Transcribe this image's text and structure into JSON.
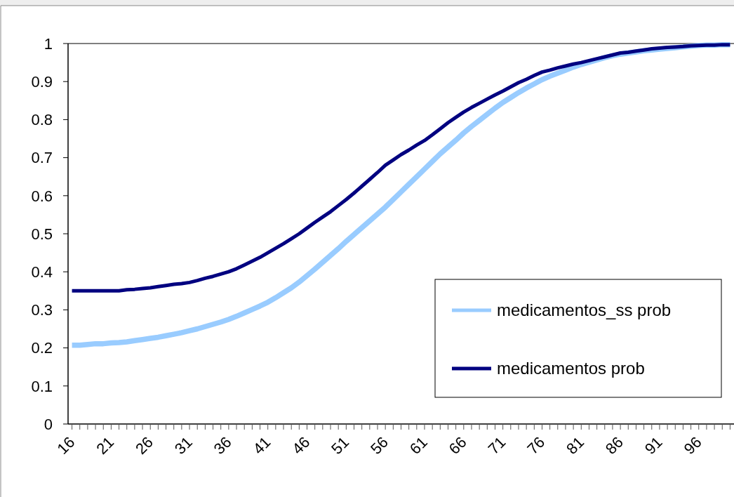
{
  "chart_data": {
    "type": "line",
    "categories": [
      "16",
      null,
      null,
      null,
      null,
      "21",
      null,
      null,
      null,
      null,
      "26",
      null,
      null,
      null,
      null,
      "31",
      null,
      null,
      null,
      null,
      "36",
      null,
      null,
      null,
      null,
      "41",
      null,
      null,
      null,
      null,
      "46",
      null,
      null,
      null,
      null,
      "51",
      null,
      null,
      null,
      null,
      "56",
      null,
      null,
      null,
      null,
      "61",
      null,
      null,
      null,
      null,
      "66",
      null,
      null,
      null,
      null,
      "71",
      null,
      null,
      null,
      null,
      "76",
      null,
      null,
      null,
      null,
      "81",
      null,
      null,
      null,
      null,
      "86",
      null,
      null,
      null,
      null,
      "91",
      null,
      null,
      null,
      null,
      "96",
      null,
      null,
      null,
      null
    ],
    "series": [
      {
        "name": "medicamentos_ss prob",
        "color": "#99ccff",
        "values": [
          0.207,
          0.207,
          0.209,
          0.211,
          0.211,
          0.213,
          0.214,
          0.216,
          0.219,
          0.222,
          0.225,
          0.228,
          0.232,
          0.236,
          0.24,
          0.245,
          0.25,
          0.256,
          0.262,
          0.268,
          0.275,
          0.283,
          0.292,
          0.301,
          0.31,
          0.32,
          0.332,
          0.345,
          0.358,
          0.373,
          0.39,
          0.407,
          0.425,
          0.443,
          0.461,
          0.48,
          0.498,
          0.516,
          0.534,
          0.552,
          0.57,
          0.59,
          0.61,
          0.63,
          0.65,
          0.67,
          0.69,
          0.71,
          0.728,
          0.746,
          0.765,
          0.782,
          0.798,
          0.814,
          0.83,
          0.845,
          0.858,
          0.871,
          0.883,
          0.894,
          0.905,
          0.914,
          0.922,
          0.93,
          0.938,
          0.945,
          0.951,
          0.957,
          0.963,
          0.968,
          0.972,
          0.975,
          0.978,
          0.981,
          0.983,
          0.985,
          0.987,
          0.989,
          0.991,
          0.993,
          0.995,
          0.996,
          0.996,
          0.997,
          0.997
        ]
      },
      {
        "name": "medicamentos prob",
        "color": "#000080",
        "values": [
          0.35,
          0.35,
          0.35,
          0.35,
          0.35,
          0.35,
          0.35,
          0.353,
          0.354,
          0.356,
          0.358,
          0.361,
          0.364,
          0.367,
          0.369,
          0.372,
          0.377,
          0.383,
          0.388,
          0.394,
          0.4,
          0.408,
          0.418,
          0.428,
          0.438,
          0.45,
          0.462,
          0.474,
          0.487,
          0.5,
          0.515,
          0.53,
          0.544,
          0.558,
          0.574,
          0.59,
          0.607,
          0.625,
          0.643,
          0.661,
          0.68,
          0.694,
          0.708,
          0.72,
          0.733,
          0.745,
          0.76,
          0.776,
          0.792,
          0.806,
          0.82,
          0.832,
          0.843,
          0.854,
          0.865,
          0.875,
          0.886,
          0.897,
          0.906,
          0.916,
          0.925,
          0.93,
          0.936,
          0.941,
          0.946,
          0.95,
          0.955,
          0.96,
          0.965,
          0.97,
          0.975,
          0.977,
          0.98,
          0.983,
          0.986,
          0.988,
          0.99,
          0.991,
          0.992,
          0.994,
          0.995,
          0.996,
          0.996,
          0.997,
          0.997
        ]
      }
    ],
    "ylim": [
      0,
      1
    ],
    "yticks": [
      0,
      0.1,
      0.2,
      0.3,
      0.4,
      0.5,
      0.6,
      0.7,
      0.8,
      0.9,
      1
    ],
    "grid": false,
    "legend": "bottom right",
    "marker": "none",
    "line_style": "solid"
  }
}
